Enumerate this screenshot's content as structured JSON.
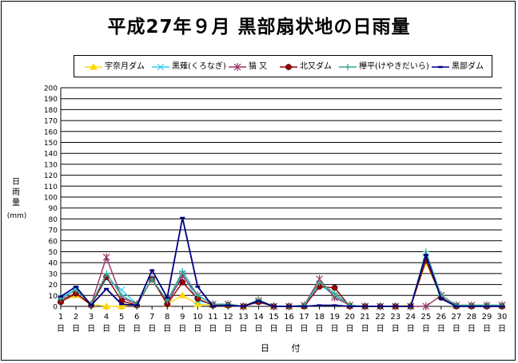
{
  "chart_data": {
    "type": "line",
    "title": "平成27年９月 黒部扇状地の日雨量",
    "ylabel": "日雨量",
    "yunit": "(mm)",
    "xlabel": "日 付",
    "ylim": [
      0,
      200
    ],
    "ytick_step": 10,
    "grid": "horizontal",
    "legend_position": "top",
    "x": [
      1,
      2,
      3,
      4,
      5,
      6,
      7,
      8,
      9,
      10,
      11,
      12,
      13,
      14,
      15,
      16,
      17,
      18,
      19,
      20,
      21,
      22,
      23,
      24,
      25,
      26,
      27,
      28,
      29,
      30
    ],
    "x_suffix": "日",
    "series": [
      {
        "name": "宇奈月ダム",
        "color": "#ffd700",
        "marker": "triangle",
        "values": [
          5,
          10,
          2,
          0,
          0,
          2,
          25,
          2,
          10,
          2,
          1,
          1,
          0,
          6,
          0,
          0,
          0,
          22,
          10,
          1,
          0,
          0,
          0,
          1,
          40,
          10,
          1,
          1,
          1,
          1
        ]
      },
      {
        "name": "黒薙(くろなぎ)",
        "color": "#33ccee",
        "marker": "x",
        "values": [
          8,
          15,
          2,
          25,
          15,
          2,
          25,
          5,
          30,
          5,
          2,
          2,
          0,
          5,
          0,
          0,
          1,
          20,
          10,
          1,
          0,
          0,
          0,
          0,
          45,
          10,
          1,
          1,
          1,
          1
        ]
      },
      {
        "name": "猫 又",
        "color": "#993366",
        "marker": "star",
        "values": [
          6,
          12,
          2,
          45,
          8,
          2,
          25,
          3,
          28,
          10,
          2,
          2,
          0,
          5,
          0,
          0,
          1,
          25,
          8,
          1,
          0,
          0,
          0,
          0,
          0,
          10,
          1,
          1,
          1,
          1
        ]
      },
      {
        "name": "北又ダム",
        "color": "#990000",
        "marker": "circle",
        "values": [
          4,
          12,
          1,
          27,
          5,
          1,
          25,
          2,
          22,
          7,
          1,
          1,
          0,
          4,
          0,
          0,
          0,
          18,
          17,
          0,
          0,
          0,
          0,
          0,
          42,
          8,
          0,
          0,
          0,
          0
        ]
      },
      {
        "name": "欅平(けやきだいら)",
        "color": "#33aa99",
        "marker": "plus",
        "values": [
          7,
          15,
          2,
          30,
          10,
          2,
          25,
          5,
          32,
          10,
          2,
          2,
          0,
          6,
          0,
          0,
          1,
          22,
          12,
          1,
          0,
          0,
          0,
          0,
          50,
          10,
          1,
          1,
          1,
          1
        ]
      },
      {
        "name": "黒部ダム",
        "color": "#000080",
        "marker": "dash",
        "values": [
          9,
          18,
          1,
          16,
          2,
          1,
          33,
          8,
          81,
          18,
          0,
          1,
          0,
          5,
          0,
          0,
          0,
          1,
          1,
          0,
          0,
          0,
          0,
          0,
          47,
          7,
          0,
          0,
          0,
          0
        ]
      }
    ]
  }
}
